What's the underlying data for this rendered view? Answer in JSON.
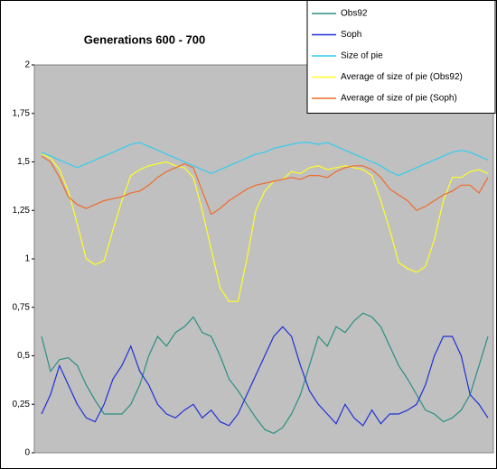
{
  "chart_data": {
    "type": "line",
    "title": "Generations 600 - 700",
    "ylim": [
      0,
      2
    ],
    "yticks": [
      0,
      {
        "value": 0.25,
        "label": "0,25"
      },
      {
        "value": 0.5,
        "label": "0,5"
      },
      {
        "value": 0.75,
        "label": "0,75"
      },
      1,
      {
        "value": 1.25,
        "label": "1,25"
      },
      {
        "value": 1.5,
        "label": "1,5"
      },
      {
        "value": 1.75,
        "label": "1,75"
      },
      2
    ],
    "grid": false,
    "legend": "top-right",
    "series": [
      {
        "name": "Obs92",
        "color": "#2a8f80",
        "values": [
          0.6,
          0.42,
          0.48,
          0.49,
          0.45,
          0.35,
          0.27,
          0.2,
          0.2,
          0.2,
          0.25,
          0.35,
          0.5,
          0.6,
          0.55,
          0.62,
          0.65,
          0.7,
          0.62,
          0.6,
          0.5,
          0.38,
          0.32,
          0.25,
          0.18,
          0.12,
          0.1,
          0.13,
          0.2,
          0.3,
          0.45,
          0.6,
          0.55,
          0.65,
          0.62,
          0.68,
          0.72,
          0.7,
          0.65,
          0.55,
          0.45,
          0.38,
          0.3,
          0.22,
          0.2,
          0.16,
          0.18,
          0.22,
          0.3,
          0.45,
          0.6
        ]
      },
      {
        "name": "Soph",
        "color": "#2030d8",
        "values": [
          0.2,
          0.3,
          0.45,
          0.35,
          0.25,
          0.18,
          0.16,
          0.25,
          0.38,
          0.45,
          0.55,
          0.42,
          0.35,
          0.25,
          0.2,
          0.18,
          0.22,
          0.25,
          0.18,
          0.22,
          0.16,
          0.14,
          0.2,
          0.3,
          0.4,
          0.5,
          0.6,
          0.65,
          0.6,
          0.45,
          0.32,
          0.25,
          0.2,
          0.15,
          0.25,
          0.18,
          0.14,
          0.22,
          0.15,
          0.2,
          0.2,
          0.22,
          0.25,
          0.35,
          0.5,
          0.6,
          0.6,
          0.5,
          0.3,
          0.25,
          0.18
        ]
      },
      {
        "name": "Size of pie",
        "color": "#33ccee",
        "values": [
          1.55,
          1.53,
          1.51,
          1.49,
          1.47,
          1.49,
          1.51,
          1.53,
          1.55,
          1.57,
          1.59,
          1.6,
          1.58,
          1.56,
          1.54,
          1.52,
          1.5,
          1.48,
          1.46,
          1.44,
          1.46,
          1.48,
          1.5,
          1.52,
          1.54,
          1.55,
          1.57,
          1.58,
          1.59,
          1.6,
          1.6,
          1.59,
          1.6,
          1.58,
          1.56,
          1.54,
          1.52,
          1.5,
          1.48,
          1.45,
          1.43,
          1.45,
          1.47,
          1.49,
          1.51,
          1.53,
          1.55,
          1.56,
          1.55,
          1.53,
          1.51
        ]
      },
      {
        "name": "Average of size of pie (Obs92)",
        "color": "#ffff22",
        "values": [
          1.54,
          1.52,
          1.46,
          1.35,
          1.18,
          1.0,
          0.97,
          0.99,
          1.15,
          1.3,
          1.43,
          1.46,
          1.48,
          1.49,
          1.5,
          1.48,
          1.47,
          1.42,
          1.25,
          1.05,
          0.85,
          0.78,
          0.78,
          1.0,
          1.25,
          1.35,
          1.4,
          1.41,
          1.45,
          1.44,
          1.47,
          1.48,
          1.46,
          1.47,
          1.48,
          1.47,
          1.46,
          1.43,
          1.3,
          1.15,
          0.98,
          0.95,
          0.93,
          0.96,
          1.1,
          1.3,
          1.42,
          1.42,
          1.45,
          1.46,
          1.44
        ]
      },
      {
        "name": "Average of size of pie (Soph)",
        "color": "#f06a2a",
        "values": [
          1.53,
          1.5,
          1.42,
          1.32,
          1.28,
          1.26,
          1.28,
          1.3,
          1.31,
          1.32,
          1.34,
          1.35,
          1.38,
          1.42,
          1.45,
          1.47,
          1.49,
          1.47,
          1.35,
          1.23,
          1.26,
          1.3,
          1.33,
          1.36,
          1.38,
          1.39,
          1.4,
          1.41,
          1.42,
          1.41,
          1.43,
          1.43,
          1.42,
          1.45,
          1.47,
          1.48,
          1.48,
          1.46,
          1.42,
          1.36,
          1.33,
          1.3,
          1.25,
          1.27,
          1.3,
          1.33,
          1.35,
          1.38,
          1.38,
          1.34,
          1.42
        ]
      }
    ]
  }
}
